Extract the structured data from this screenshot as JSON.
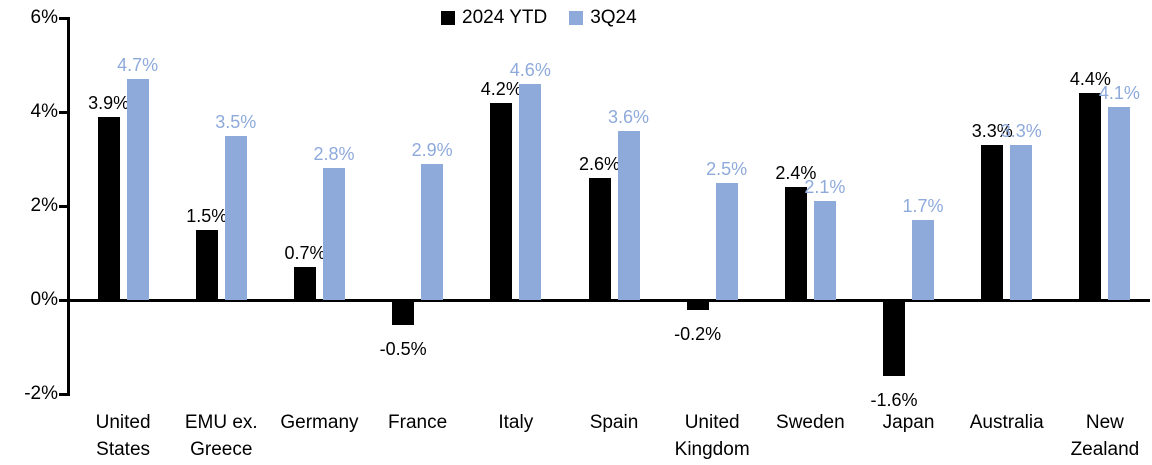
{
  "chart_data": {
    "type": "bar",
    "title": "",
    "categories": [
      "United States",
      "EMU ex. Greece",
      "Germany",
      "France",
      "Italy",
      "Spain",
      "United Kingdom",
      "Sweden",
      "Japan",
      "Australia",
      "New Zealand"
    ],
    "categories_wrapped": [
      [
        "United",
        "States"
      ],
      [
        "EMU ex.",
        "Greece"
      ],
      [
        "Germany"
      ],
      [
        "France"
      ],
      [
        "Italy"
      ],
      [
        "Spain"
      ],
      [
        "United",
        "Kingdom"
      ],
      [
        "Sweden"
      ],
      [
        "Japan"
      ],
      [
        "Australia"
      ],
      [
        "New",
        "Zealand"
      ]
    ],
    "series": [
      {
        "name": "2024 YTD",
        "color": "#000000",
        "label_color": "#000000",
        "values": [
          3.9,
          1.5,
          0.7,
          -0.5,
          4.2,
          2.6,
          -0.2,
          2.4,
          -1.6,
          3.3,
          4.4
        ],
        "labels": [
          "3.9%",
          "1.5%",
          "0.7%",
          "-0.5%",
          "4.2%",
          "2.6%",
          "-0.2%",
          "2.4%",
          "-1.6%",
          "3.3%",
          "4.4%"
        ]
      },
      {
        "name": "3Q24",
        "color": "#8EAADB",
        "label_color": "#8EAADB",
        "values": [
          4.7,
          3.5,
          2.8,
          2.9,
          4.6,
          3.6,
          2.5,
          2.1,
          1.7,
          3.3,
          4.1
        ],
        "labels": [
          "4.7%",
          "3.5%",
          "2.8%",
          "2.9%",
          "4.6%",
          "3.6%",
          "2.5%",
          "2.1%",
          "1.7%",
          "3.3%",
          "4.1%"
        ]
      }
    ],
    "y_axis": {
      "tick_labels": [
        "6%",
        "4%",
        "2%",
        "0%",
        "-2%"
      ],
      "tick_values": [
        6,
        4,
        2,
        0,
        -2
      ],
      "min": -2,
      "max": 6,
      "unit": "%"
    },
    "legend": {
      "position": "top-center"
    },
    "grid": false,
    "background": "#FFFFFF",
    "axis_color": "#000000"
  }
}
